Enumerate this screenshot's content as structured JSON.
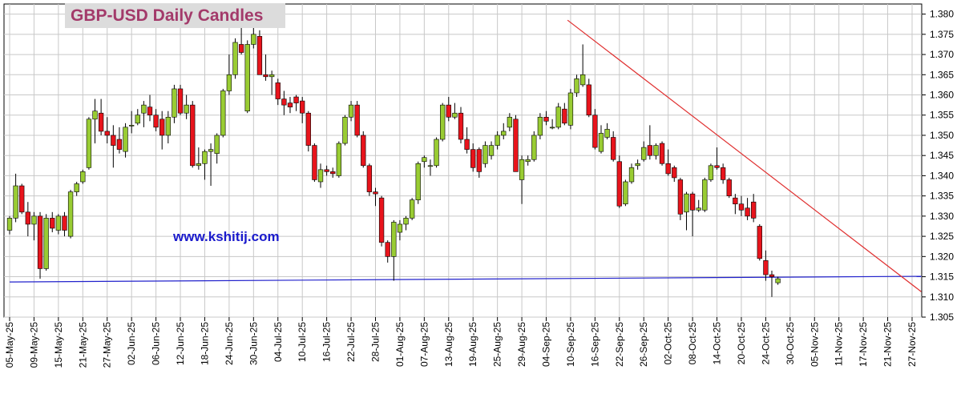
{
  "chart_data": {
    "type": "candlestick",
    "title": "GBP-USD Daily Candles",
    "annotation": "www.kshitij.com",
    "up_color": "#99cc33",
    "down_color": "#e8141c",
    "grid": true,
    "ylim": [
      1.305,
      1.3825
    ],
    "yticks": [
      {
        "value": 1.305,
        "label": "1.305"
      },
      {
        "value": 1.31,
        "label": "1.310"
      },
      {
        "value": 1.315,
        "label": "1.315"
      },
      {
        "value": 1.32,
        "label": "1.320"
      },
      {
        "value": 1.325,
        "label": "1.325"
      },
      {
        "value": 1.33,
        "label": "1.330"
      },
      {
        "value": 1.335,
        "label": "1.335"
      },
      {
        "value": 1.34,
        "label": "1.340"
      },
      {
        "value": 1.345,
        "label": "1.345"
      },
      {
        "value": 1.35,
        "label": "1.350"
      },
      {
        "value": 1.355,
        "label": "1.355"
      },
      {
        "value": 1.36,
        "label": "1.360"
      },
      {
        "value": 1.365,
        "label": "1.365"
      },
      {
        "value": 1.37,
        "label": "1.370"
      },
      {
        "value": 1.375,
        "label": "1.375"
      },
      {
        "value": 1.38,
        "label": "1.380"
      }
    ],
    "categories": [
      "05-May-25",
      null,
      null,
      null,
      "09-May-25",
      null,
      null,
      null,
      "15-May-25",
      null,
      null,
      null,
      "21-May-25",
      null,
      null,
      null,
      "27-May-25",
      null,
      null,
      null,
      "02-Jun-25",
      null,
      null,
      null,
      "06-Jun-25",
      null,
      null,
      null,
      "12-Jun-25",
      null,
      null,
      null,
      "18-Jun-25",
      null,
      null,
      null,
      "24-Jun-25",
      null,
      null,
      null,
      "30-Jun-25",
      null,
      null,
      null,
      "04-Jul-25",
      null,
      null,
      null,
      "10-Jul-25",
      null,
      null,
      null,
      "16-Jul-25",
      null,
      null,
      null,
      "22-Jul-25",
      null,
      null,
      null,
      "28-Jul-25",
      null,
      null,
      null,
      "01-Aug-25",
      null,
      null,
      null,
      "07-Aug-25",
      null,
      null,
      null,
      "13-Aug-25",
      null,
      null,
      null,
      "19-Aug-25",
      null,
      null,
      null,
      "25-Aug-25",
      null,
      null,
      null,
      "29-Aug-25",
      null,
      null,
      null,
      "04-Sep-25",
      null,
      null,
      null,
      "10-Sep-25",
      null,
      null,
      null,
      "16-Sep-25",
      null,
      null,
      null,
      "22-Sep-25",
      null,
      null,
      null,
      "26-Sep-25",
      null,
      null,
      null,
      "02-Oct-25",
      null,
      null,
      null,
      "08-Oct-25",
      null,
      null,
      null,
      "14-Oct-25",
      null,
      null,
      null,
      "20-Oct-25",
      null,
      null,
      null,
      "24-Oct-25",
      null,
      null,
      null,
      "30-Oct-25",
      null,
      null,
      null,
      "05-Nov-25",
      null,
      null,
      null,
      "11-Nov-25",
      null,
      null,
      null,
      "17-Nov-25",
      null,
      null,
      null,
      "21-Nov-25",
      null,
      null,
      null,
      "27-Nov-25"
    ],
    "open": [
      1.3265,
      1.3295,
      1.3375,
      1.331,
      1.328,
      1.33,
      1.317,
      1.3295,
      1.3265,
      1.33,
      1.325,
      1.336,
      1.3385,
      1.342,
      1.354,
      1.3555,
      1.351,
      1.35,
      1.349,
      1.346,
      1.3525,
      1.353,
      1.3555,
      1.357,
      1.355,
      1.354,
      1.35,
      1.3545,
      1.3615,
      1.3555,
      1.3575,
      1.3425,
      1.343,
      1.346,
      1.3455,
      1.35,
      1.361,
      1.365,
      1.3725,
      1.356,
      1.3725,
      1.3745,
      1.365,
      1.3645,
      1.363,
      1.359,
      1.358,
      1.3595,
      1.3585,
      1.3555,
      1.3475,
      1.3385,
      1.3415,
      1.341,
      1.34,
      1.348,
      1.3545,
      1.3575,
      1.35,
      1.3425,
      1.336,
      1.3345,
      1.3235,
      1.32,
      1.326,
      1.328,
      1.3295,
      1.334,
      1.3435,
      1.3425,
      1.3425,
      1.349,
      1.3575,
      1.3545,
      1.3555,
      1.349,
      1.3465,
      1.3465,
      1.343,
      1.345,
      1.3475,
      1.35,
      1.352,
      1.354,
      1.339,
      1.3435,
      1.344,
      1.35,
      1.3545,
      1.352,
      1.352,
      1.3565,
      1.3525,
      1.3605,
      1.3625,
      1.3625,
      1.355,
      1.346,
      1.3495,
      1.3495,
      1.3435,
      1.333,
      1.3385,
      1.3425,
      1.344,
      1.3475,
      1.345,
      1.348,
      1.343,
      1.342,
      1.339,
      1.331,
      1.3355,
      1.3315,
      1.3315,
      1.339,
      1.3425,
      1.342,
      1.339,
      1.3345,
      1.333,
      1.332,
      1.3335,
      1.3275,
      1.319,
      1.3155,
      1.3135,
      null,
      null,
      null,
      null,
      null,
      null,
      null,
      null,
      null,
      null,
      null,
      null,
      null,
      null,
      null,
      null,
      null,
      null,
      null,
      null,
      null,
      null
    ],
    "high": [
      1.33,
      1.3405,
      1.338,
      1.3335,
      1.331,
      1.331,
      1.3305,
      1.331,
      1.3305,
      1.331,
      1.3365,
      1.3385,
      1.3415,
      1.3545,
      1.359,
      1.359,
      1.3545,
      1.3525,
      1.352,
      1.353,
      1.356,
      1.3565,
      1.3585,
      1.36,
      1.3565,
      1.356,
      1.356,
      1.3625,
      1.3625,
      1.36,
      1.3585,
      1.347,
      1.3465,
      1.348,
      1.3505,
      1.3615,
      1.37,
      1.374,
      1.377,
      1.3735,
      1.377,
      1.376,
      1.37,
      1.366,
      1.364,
      1.361,
      1.3595,
      1.36,
      1.3595,
      1.356,
      1.348,
      1.343,
      1.3425,
      1.342,
      1.3485,
      1.355,
      1.3585,
      1.3585,
      1.351,
      1.343,
      1.337,
      1.335,
      1.324,
      1.329,
      1.329,
      1.33,
      1.3345,
      1.3435,
      1.345,
      1.344,
      1.3495,
      1.358,
      1.3595,
      1.358,
      1.357,
      1.352,
      1.348,
      1.347,
      1.3485,
      1.3485,
      1.351,
      1.353,
      1.3555,
      1.355,
      1.345,
      1.345,
      1.351,
      1.3555,
      1.356,
      1.354,
      1.358,
      1.358,
      1.3615,
      1.365,
      1.3725,
      1.364,
      1.3565,
      1.3525,
      1.353,
      1.351,
      1.345,
      1.339,
      1.343,
      1.344,
      1.3485,
      1.3525,
      1.348,
      1.3485,
      1.3465,
      1.3425,
      1.3395,
      1.336,
      1.336,
      1.334,
      1.3395,
      1.343,
      1.347,
      1.343,
      1.3395,
      1.3355,
      1.335,
      1.3345,
      1.3355,
      1.328,
      1.3215,
      1.3165,
      1.315,
      null,
      null,
      null,
      null,
      null,
      null,
      null,
      null,
      null,
      null,
      null,
      null,
      null,
      null,
      null,
      null,
      null,
      null,
      null,
      null,
      null,
      null
    ],
    "low": [
      1.3255,
      1.3285,
      1.3305,
      1.325,
      1.324,
      1.3145,
      1.3165,
      1.326,
      1.3255,
      1.325,
      1.3245,
      1.335,
      1.338,
      1.3415,
      1.348,
      1.35,
      1.348,
      1.342,
      1.3455,
      1.3445,
      1.3505,
      1.3525,
      1.352,
      1.3535,
      1.351,
      1.3465,
      1.348,
      1.353,
      1.355,
      1.354,
      1.342,
      1.3415,
      1.339,
      1.3375,
      1.343,
      1.3495,
      1.36,
      1.364,
      1.37,
      1.3555,
      1.3715,
      1.365,
      1.3635,
      1.36,
      1.3575,
      1.355,
      1.3555,
      1.356,
      1.353,
      1.346,
      1.3385,
      1.337,
      1.34,
      1.3395,
      1.3395,
      1.3475,
      1.3535,
      1.3495,
      1.342,
      1.335,
      1.3325,
      1.3225,
      1.3185,
      1.314,
      1.324,
      1.3265,
      1.329,
      1.333,
      1.342,
      1.34,
      1.342,
      1.3485,
      1.3535,
      1.354,
      1.348,
      1.3455,
      1.341,
      1.3395,
      1.342,
      1.344,
      1.3465,
      1.349,
      1.351,
      1.341,
      1.333,
      1.3425,
      1.3435,
      1.349,
      1.3525,
      1.3515,
      1.3515,
      1.3525,
      1.3515,
      1.3595,
      1.362,
      1.3545,
      1.3465,
      1.3455,
      1.349,
      1.3435,
      1.332,
      1.3325,
      1.338,
      1.3415,
      1.3435,
      1.344,
      1.344,
      1.3425,
      1.34,
      1.3385,
      1.329,
      1.3265,
      1.325,
      1.331,
      1.331,
      1.3385,
      1.3415,
      1.338,
      1.3345,
      1.3305,
      1.33,
      1.329,
      1.3285,
      1.319,
      1.314,
      1.31,
      1.313,
      null,
      null,
      null,
      null,
      null,
      null,
      null,
      null,
      null,
      null,
      null,
      null,
      null,
      null,
      null,
      null,
      null,
      null,
      null,
      null,
      null,
      null
    ],
    "close": [
      1.3295,
      1.3375,
      1.331,
      1.328,
      1.33,
      1.317,
      1.3295,
      1.327,
      1.33,
      1.3265,
      1.336,
      1.338,
      1.341,
      1.354,
      1.356,
      1.351,
      1.35,
      1.3475,
      1.3465,
      1.352,
      1.3525,
      1.355,
      1.3575,
      1.355,
      1.352,
      1.35,
      1.3545,
      1.3615,
      1.3555,
      1.3575,
      1.3425,
      1.343,
      1.346,
      1.3465,
      1.35,
      1.361,
      1.365,
      1.373,
      1.3705,
      1.3725,
      1.375,
      1.365,
      1.3645,
      1.365,
      1.359,
      1.3575,
      1.357,
      1.358,
      1.3555,
      1.3475,
      1.339,
      1.3415,
      1.341,
      1.3405,
      1.348,
      1.3545,
      1.3575,
      1.35,
      1.3425,
      1.336,
      1.3355,
      1.3235,
      1.32,
      1.3285,
      1.328,
      1.3295,
      1.334,
      1.343,
      1.3445,
      1.3425,
      1.349,
      1.3575,
      1.3545,
      1.3555,
      1.349,
      1.3465,
      1.342,
      1.341,
      1.3475,
      1.3475,
      1.35,
      1.351,
      1.3545,
      1.341,
      1.344,
      1.344,
      1.35,
      1.3545,
      1.3535,
      1.352,
      1.357,
      1.353,
      1.3605,
      1.364,
      1.365,
      1.355,
      1.347,
      1.3505,
      1.3515,
      1.344,
      1.3325,
      1.3385,
      1.342,
      1.343,
      1.347,
      1.345,
      1.3475,
      1.343,
      1.3405,
      1.3395,
      1.3305,
      1.3355,
      1.3315,
      1.332,
      1.339,
      1.3425,
      1.342,
      1.339,
      1.335,
      1.333,
      1.3315,
      1.33,
      1.3295,
      1.3195,
      1.3155,
      1.315,
      1.3145,
      null,
      null,
      null,
      null,
      null,
      null,
      null,
      null,
      null,
      null,
      null,
      null,
      null,
      null,
      null,
      null,
      null,
      null,
      null,
      null,
      null,
      null
    ],
    "lines": [
      {
        "color": "#2222cc",
        "x": [
          0,
          149.5
        ],
        "y": [
          1.3137,
          1.3151
        ]
      },
      {
        "color": "#e03030",
        "x": [
          91.5,
          149.5
        ],
        "y": [
          1.3785,
          1.3113
        ]
      }
    ]
  }
}
